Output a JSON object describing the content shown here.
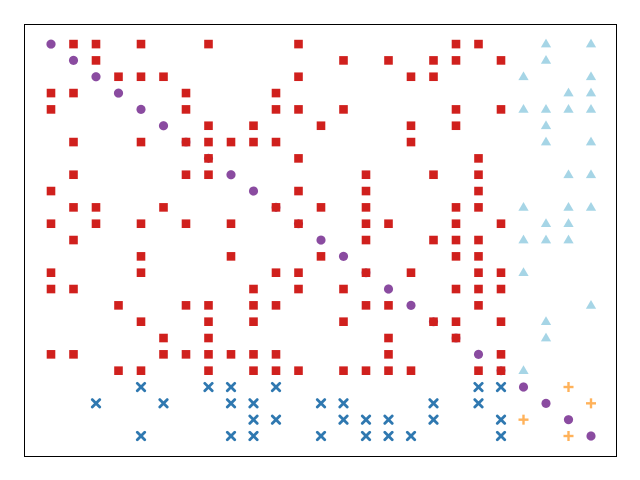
{
  "chart_data": {
    "type": "scatter",
    "title": "",
    "xlabel": "",
    "ylabel": "",
    "axes": "hidden",
    "xlim": [
      -1,
      25
    ],
    "ylim": [
      -1,
      25
    ],
    "colors": {
      "circle": "#8a4ba0",
      "square": "#d0201d",
      "triangle": "#a6d5e6",
      "cross": "#ffb25a",
      "xmark": "#2f78b0"
    },
    "series": [
      {
        "marker": "circle",
        "color": "#8a4ba0",
        "points": [
          [
            0,
            24
          ],
          [
            1,
            23
          ],
          [
            2,
            22
          ],
          [
            3,
            21
          ],
          [
            4,
            20
          ],
          [
            5,
            19
          ],
          [
            6,
            18
          ],
          [
            7,
            17
          ],
          [
            8,
            16
          ],
          [
            9,
            15
          ],
          [
            10,
            14
          ],
          [
            11,
            13
          ],
          [
            12,
            12
          ],
          [
            13,
            11
          ],
          [
            14,
            10
          ],
          [
            15,
            9
          ],
          [
            16,
            8
          ],
          [
            17,
            7
          ],
          [
            18,
            6
          ],
          [
            19,
            5
          ],
          [
            20,
            4
          ],
          [
            21,
            3
          ],
          [
            22,
            2
          ],
          [
            23,
            1
          ],
          [
            24,
            0
          ]
        ]
      },
      {
        "marker": "square",
        "color": "#d0201d",
        "points": [
          [
            1,
            24
          ],
          [
            2,
            24
          ],
          [
            4,
            24
          ],
          [
            7,
            24
          ],
          [
            11,
            24
          ],
          [
            18,
            24
          ],
          [
            19,
            24
          ],
          [
            2,
            23
          ],
          [
            13,
            23
          ],
          [
            15,
            23
          ],
          [
            17,
            23
          ],
          [
            18,
            23
          ],
          [
            20,
            23
          ],
          [
            3,
            22
          ],
          [
            4,
            22
          ],
          [
            5,
            22
          ],
          [
            11,
            22
          ],
          [
            16,
            22
          ],
          [
            17,
            22
          ],
          [
            0,
            21
          ],
          [
            1,
            21
          ],
          [
            6,
            21
          ],
          [
            10,
            21
          ],
          [
            0,
            20
          ],
          [
            6,
            20
          ],
          [
            10,
            20
          ],
          [
            11,
            20
          ],
          [
            13,
            20
          ],
          [
            18,
            20
          ],
          [
            20,
            20
          ],
          [
            7,
            19
          ],
          [
            9,
            19
          ],
          [
            12,
            19
          ],
          [
            16,
            19
          ],
          [
            18,
            19
          ],
          [
            1,
            18
          ],
          [
            4,
            18
          ],
          [
            6,
            18
          ],
          [
            7,
            18
          ],
          [
            8,
            18
          ],
          [
            9,
            18
          ],
          [
            10,
            18
          ],
          [
            16,
            18
          ],
          [
            7,
            17
          ],
          [
            11,
            17
          ],
          [
            19,
            17
          ],
          [
            1,
            16
          ],
          [
            6,
            16
          ],
          [
            7,
            16
          ],
          [
            14,
            16
          ],
          [
            17,
            16
          ],
          [
            19,
            16
          ],
          [
            0,
            15
          ],
          [
            11,
            15
          ],
          [
            14,
            15
          ],
          [
            19,
            15
          ],
          [
            1,
            14
          ],
          [
            2,
            14
          ],
          [
            5,
            14
          ],
          [
            10,
            14
          ],
          [
            12,
            14
          ],
          [
            14,
            14
          ],
          [
            18,
            14
          ],
          [
            19,
            14
          ],
          [
            0,
            13
          ],
          [
            2,
            13
          ],
          [
            4,
            13
          ],
          [
            6,
            13
          ],
          [
            8,
            13
          ],
          [
            11,
            13
          ],
          [
            14,
            13
          ],
          [
            15,
            13
          ],
          [
            18,
            13
          ],
          [
            20,
            13
          ],
          [
            1,
            12
          ],
          [
            14,
            12
          ],
          [
            17,
            12
          ],
          [
            18,
            12
          ],
          [
            19,
            12
          ],
          [
            4,
            11
          ],
          [
            8,
            11
          ],
          [
            12,
            11
          ],
          [
            18,
            11
          ],
          [
            19,
            11
          ],
          [
            0,
            10
          ],
          [
            4,
            10
          ],
          [
            10,
            10
          ],
          [
            11,
            10
          ],
          [
            14,
            10
          ],
          [
            16,
            10
          ],
          [
            19,
            10
          ],
          [
            20,
            10
          ],
          [
            0,
            9
          ],
          [
            1,
            9
          ],
          [
            9,
            9
          ],
          [
            11,
            9
          ],
          [
            13,
            9
          ],
          [
            18,
            9
          ],
          [
            19,
            9
          ],
          [
            20,
            9
          ],
          [
            3,
            8
          ],
          [
            6,
            8
          ],
          [
            7,
            8
          ],
          [
            9,
            8
          ],
          [
            10,
            8
          ],
          [
            14,
            8
          ],
          [
            15,
            8
          ],
          [
            19,
            8
          ],
          [
            4,
            7
          ],
          [
            7,
            7
          ],
          [
            9,
            7
          ],
          [
            13,
            7
          ],
          [
            17,
            7
          ],
          [
            18,
            7
          ],
          [
            20,
            7
          ],
          [
            5,
            6
          ],
          [
            7,
            6
          ],
          [
            15,
            6
          ],
          [
            18,
            6
          ],
          [
            0,
            5
          ],
          [
            1,
            5
          ],
          [
            5,
            5
          ],
          [
            6,
            5
          ],
          [
            7,
            5
          ],
          [
            8,
            5
          ],
          [
            9,
            5
          ],
          [
            10,
            5
          ],
          [
            15,
            5
          ],
          [
            20,
            5
          ],
          [
            3,
            4
          ],
          [
            4,
            4
          ],
          [
            7,
            4
          ],
          [
            9,
            4
          ],
          [
            10,
            4
          ],
          [
            11,
            4
          ],
          [
            13,
            4
          ],
          [
            14,
            4
          ],
          [
            15,
            4
          ],
          [
            16,
            4
          ],
          [
            19,
            4
          ],
          [
            20,
            4
          ]
        ]
      },
      {
        "marker": "triangle",
        "color": "#a6d5e6",
        "points": [
          [
            22,
            24
          ],
          [
            24,
            24
          ],
          [
            22,
            23
          ],
          [
            21,
            22
          ],
          [
            24,
            22
          ],
          [
            23,
            21
          ],
          [
            24,
            21
          ],
          [
            21,
            20
          ],
          [
            22,
            20
          ],
          [
            23,
            20
          ],
          [
            24,
            20
          ],
          [
            22,
            19
          ],
          [
            22,
            18
          ],
          [
            24,
            18
          ],
          [
            23,
            16
          ],
          [
            24,
            16
          ],
          [
            21,
            14
          ],
          [
            23,
            14
          ],
          [
            24,
            14
          ],
          [
            22,
            13
          ],
          [
            23,
            13
          ],
          [
            21,
            12
          ],
          [
            22,
            12
          ],
          [
            23,
            12
          ],
          [
            21,
            10
          ],
          [
            24,
            8
          ],
          [
            22,
            7
          ],
          [
            22,
            6
          ],
          [
            21,
            4
          ]
        ]
      },
      {
        "marker": "cross",
        "color": "#ffb25a",
        "points": [
          [
            23,
            3
          ],
          [
            24,
            2
          ],
          [
            21,
            1
          ],
          [
            23,
            0
          ]
        ]
      },
      {
        "marker": "xmark",
        "color": "#2f78b0",
        "points": [
          [
            4,
            3
          ],
          [
            7,
            3
          ],
          [
            8,
            3
          ],
          [
            10,
            3
          ],
          [
            19,
            3
          ],
          [
            20,
            3
          ],
          [
            2,
            2
          ],
          [
            5,
            2
          ],
          [
            8,
            2
          ],
          [
            9,
            2
          ],
          [
            12,
            2
          ],
          [
            13,
            2
          ],
          [
            17,
            2
          ],
          [
            19,
            2
          ],
          [
            9,
            1
          ],
          [
            10,
            1
          ],
          [
            13,
            1
          ],
          [
            14,
            1
          ],
          [
            15,
            1
          ],
          [
            17,
            1
          ],
          [
            20,
            1
          ],
          [
            4,
            0
          ],
          [
            8,
            0
          ],
          [
            9,
            0
          ],
          [
            12,
            0
          ],
          [
            14,
            0
          ],
          [
            15,
            0
          ],
          [
            16,
            0
          ],
          [
            20,
            0
          ]
        ]
      }
    ]
  }
}
